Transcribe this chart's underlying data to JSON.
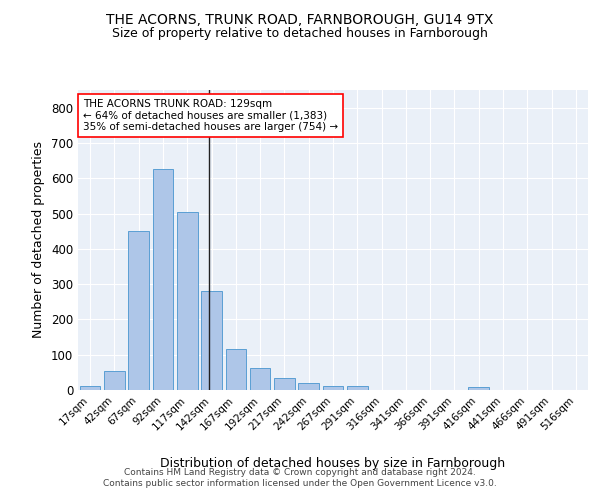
{
  "title_line1": "THE ACORNS, TRUNK ROAD, FARNBOROUGH, GU14 9TX",
  "title_line2": "Size of property relative to detached houses in Farnborough",
  "xlabel": "Distribution of detached houses by size in Farnborough",
  "ylabel": "Number of detached properties",
  "bar_labels": [
    "17sqm",
    "42sqm",
    "67sqm",
    "92sqm",
    "117sqm",
    "142sqm",
    "167sqm",
    "192sqm",
    "217sqm",
    "242sqm",
    "267sqm",
    "291sqm",
    "316sqm",
    "341sqm",
    "366sqm",
    "391sqm",
    "416sqm",
    "441sqm",
    "466sqm",
    "491sqm",
    "516sqm"
  ],
  "bar_values": [
    12,
    55,
    450,
    625,
    505,
    280,
    117,
    62,
    35,
    20,
    10,
    10,
    0,
    0,
    0,
    0,
    8,
    0,
    0,
    0,
    0
  ],
  "bar_color": "#aec6e8",
  "bar_edge_color": "#5a9fd4",
  "vline_x": 4.88,
  "vline_color": "#222222",
  "annotation_text": "THE ACORNS TRUNK ROAD: 129sqm\n← 64% of detached houses are smaller (1,383)\n35% of semi-detached houses are larger (754) →",
  "annotation_box_color": "white",
  "annotation_box_edge": "red",
  "ylim": [
    0,
    850
  ],
  "yticks": [
    0,
    100,
    200,
    300,
    400,
    500,
    600,
    700,
    800
  ],
  "background_color": "#eaf0f8",
  "footer_line1": "Contains HM Land Registry data © Crown copyright and database right 2024.",
  "footer_line2": "Contains public sector information licensed under the Open Government Licence v3.0."
}
